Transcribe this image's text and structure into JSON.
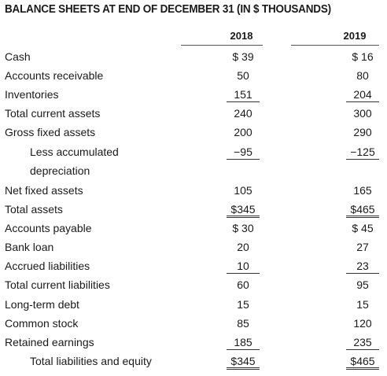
{
  "title": "BALANCE SHEETS AT END OF DECEMBER 31 (IN $ THOUSANDS)",
  "years": [
    "2018",
    "2019"
  ],
  "rows": [
    {
      "label": "Cash",
      "v2018": "$ 39",
      "v2019": "$ 16"
    },
    {
      "label": "Accounts receivable",
      "v2018": "50",
      "v2019": "80"
    },
    {
      "label": "Inventories",
      "v2018": "151",
      "v2019": "204"
    },
    {
      "label": "Total current assets",
      "v2018": "240",
      "v2019": "300"
    },
    {
      "label": "Gross fixed assets",
      "v2018": "200",
      "v2019": "290"
    },
    {
      "label": "Less accumulated",
      "v2018": "−95",
      "v2019": "−125"
    },
    {
      "label": "depreciation",
      "v2018": "",
      "v2019": ""
    },
    {
      "label": "Net fixed assets",
      "v2018": "105",
      "v2019": "165"
    },
    {
      "label": "Total assets",
      "v2018": "$345",
      "v2019": "$465"
    },
    {
      "label": "Accounts payable",
      "v2018": "$ 30",
      "v2019": "$ 45"
    },
    {
      "label": "Bank loan",
      "v2018": "20",
      "v2019": "27"
    },
    {
      "label": "Accrued liabilities",
      "v2018": "10",
      "v2019": "23"
    },
    {
      "label": "Total current liabilities",
      "v2018": "60",
      "v2019": "95"
    },
    {
      "label": "Long-term debt",
      "v2018": "15",
      "v2019": "15"
    },
    {
      "label": "Common stock",
      "v2018": "85",
      "v2019": "120"
    },
    {
      "label": "Retained earnings",
      "v2018": "185",
      "v2019": "235"
    },
    {
      "label": "Total liabilities and equity",
      "v2018": "$345",
      "v2019": "$465"
    }
  ]
}
